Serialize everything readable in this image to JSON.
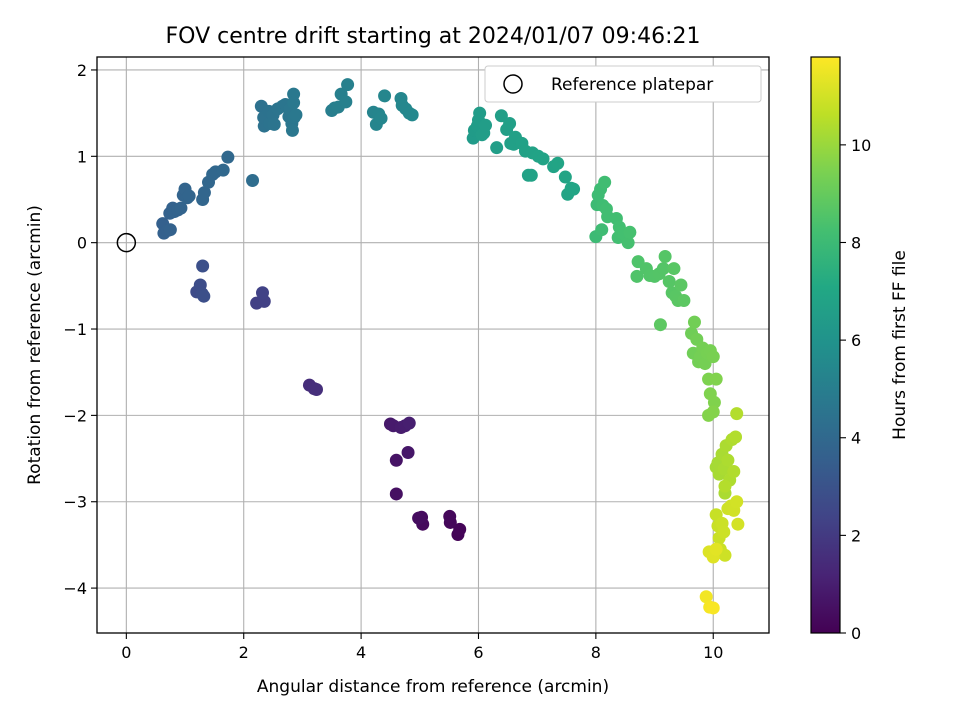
{
  "chart_data": {
    "type": "scatter",
    "title": "FOV centre drift starting at 2024/01/07 09:46:21",
    "xlabel": "Angular distance from reference (arcmin)",
    "ylabel": "Rotation from reference (arcmin)",
    "xlim": [
      -0.5,
      10.95
    ],
    "ylim": [
      -4.52,
      2.15
    ],
    "xticks": [
      0,
      2,
      4,
      6,
      8,
      10
    ],
    "yticks": [
      -4,
      -3,
      -2,
      -1,
      0,
      1,
      2
    ],
    "grid": true,
    "legend": {
      "location": "top-right",
      "entries": [
        "Reference platepar"
      ]
    },
    "reference_point": {
      "x": 0,
      "y": 0,
      "label": "Reference platepar"
    },
    "colorbar": {
      "label": "Hours from first FF file",
      "colormap": "viridis",
      "range": [
        0,
        11.8
      ],
      "ticks": [
        0,
        2,
        4,
        6,
        8,
        10
      ]
    },
    "colors": {
      "grid": "#b0b0b0",
      "axes": "#000000"
    },
    "points": [
      {
        "x": 5.65,
        "y": -3.38,
        "t": 0.1
      },
      {
        "x": 5.68,
        "y": -3.32,
        "t": 0.15
      },
      {
        "x": 5.52,
        "y": -3.24,
        "t": 0.2
      },
      {
        "x": 5.51,
        "y": -3.17,
        "t": 0.25
      },
      {
        "x": 5.05,
        "y": -3.26,
        "t": 0.3
      },
      {
        "x": 5.03,
        "y": -3.18,
        "t": 0.35
      },
      {
        "x": 4.98,
        "y": -3.19,
        "t": 0.4
      },
      {
        "x": 4.6,
        "y": -2.91,
        "t": 0.5
      },
      {
        "x": 4.6,
        "y": -2.52,
        "t": 0.6
      },
      {
        "x": 4.8,
        "y": -2.43,
        "t": 0.7
      },
      {
        "x": 4.5,
        "y": -2.1,
        "t": 0.8
      },
      {
        "x": 4.55,
        "y": -2.12,
        "t": 0.85
      },
      {
        "x": 4.68,
        "y": -2.14,
        "t": 0.9
      },
      {
        "x": 4.75,
        "y": -2.12,
        "t": 0.95
      },
      {
        "x": 4.82,
        "y": -2.09,
        "t": 1.0
      },
      {
        "x": 3.12,
        "y": -1.65,
        "t": 1.5
      },
      {
        "x": 3.2,
        "y": -1.69,
        "t": 1.55
      },
      {
        "x": 3.24,
        "y": -1.7,
        "t": 1.6
      },
      {
        "x": 2.22,
        "y": -0.7,
        "t": 2.2
      },
      {
        "x": 2.35,
        "y": -0.68,
        "t": 2.25
      },
      {
        "x": 2.32,
        "y": -0.58,
        "t": 2.3
      },
      {
        "x": 1.2,
        "y": -0.57,
        "t": 2.7
      },
      {
        "x": 1.26,
        "y": -0.49,
        "t": 2.75
      },
      {
        "x": 1.29,
        "y": -0.59,
        "t": 2.8
      },
      {
        "x": 1.32,
        "y": -0.62,
        "t": 2.85
      },
      {
        "x": 1.3,
        "y": -0.27,
        "t": 2.9
      },
      {
        "x": 0.62,
        "y": 0.22,
        "t": 3.6
      },
      {
        "x": 0.64,
        "y": 0.11,
        "t": 3.62
      },
      {
        "x": 0.7,
        "y": 0.14,
        "t": 3.64
      },
      {
        "x": 0.75,
        "y": 0.15,
        "t": 3.66
      },
      {
        "x": 0.74,
        "y": 0.34,
        "t": 3.68
      },
      {
        "x": 0.79,
        "y": 0.4,
        "t": 3.7
      },
      {
        "x": 0.82,
        "y": 0.36,
        "t": 3.72
      },
      {
        "x": 0.88,
        "y": 0.38,
        "t": 3.74
      },
      {
        "x": 0.93,
        "y": 0.4,
        "t": 3.76
      },
      {
        "x": 0.97,
        "y": 0.55,
        "t": 3.78
      },
      {
        "x": 1.0,
        "y": 0.62,
        "t": 3.8
      },
      {
        "x": 1.04,
        "y": 0.52,
        "t": 3.82
      },
      {
        "x": 1.07,
        "y": 0.54,
        "t": 3.84
      },
      {
        "x": 1.3,
        "y": 0.5,
        "t": 3.86
      },
      {
        "x": 1.33,
        "y": 0.58,
        "t": 3.88
      },
      {
        "x": 1.4,
        "y": 0.7,
        "t": 3.9
      },
      {
        "x": 1.47,
        "y": 0.79,
        "t": 3.92
      },
      {
        "x": 1.52,
        "y": 0.82,
        "t": 3.94
      },
      {
        "x": 1.65,
        "y": 0.84,
        "t": 3.96
      },
      {
        "x": 1.73,
        "y": 0.99,
        "t": 3.98
      },
      {
        "x": 2.15,
        "y": 0.72,
        "t": 4.2
      },
      {
        "x": 2.3,
        "y": 1.58,
        "t": 4.4
      },
      {
        "x": 2.35,
        "y": 1.35,
        "t": 4.42
      },
      {
        "x": 2.34,
        "y": 1.45,
        "t": 4.44
      },
      {
        "x": 2.43,
        "y": 1.52,
        "t": 4.46
      },
      {
        "x": 2.44,
        "y": 1.38,
        "t": 4.48
      },
      {
        "x": 2.5,
        "y": 1.48,
        "t": 4.5
      },
      {
        "x": 2.52,
        "y": 1.37,
        "t": 4.52
      },
      {
        "x": 2.58,
        "y": 1.55,
        "t": 4.54
      },
      {
        "x": 2.66,
        "y": 1.58,
        "t": 4.56
      },
      {
        "x": 2.71,
        "y": 1.6,
        "t": 4.58
      },
      {
        "x": 2.77,
        "y": 1.46,
        "t": 4.6
      },
      {
        "x": 2.79,
        "y": 1.55,
        "t": 4.62
      },
      {
        "x": 2.82,
        "y": 1.38,
        "t": 4.64
      },
      {
        "x": 2.83,
        "y": 1.3,
        "t": 4.66
      },
      {
        "x": 2.86,
        "y": 1.45,
        "t": 4.68
      },
      {
        "x": 2.89,
        "y": 1.48,
        "t": 4.7
      },
      {
        "x": 2.85,
        "y": 1.72,
        "t": 4.72
      },
      {
        "x": 2.85,
        "y": 1.62,
        "t": 4.74
      },
      {
        "x": 3.5,
        "y": 1.53,
        "t": 5.0
      },
      {
        "x": 3.55,
        "y": 1.56,
        "t": 5.02
      },
      {
        "x": 3.61,
        "y": 1.57,
        "t": 5.04
      },
      {
        "x": 3.66,
        "y": 1.72,
        "t": 5.06
      },
      {
        "x": 3.74,
        "y": 1.63,
        "t": 5.08
      },
      {
        "x": 3.77,
        "y": 1.83,
        "t": 5.1
      },
      {
        "x": 4.21,
        "y": 1.51,
        "t": 5.3
      },
      {
        "x": 4.26,
        "y": 1.37,
        "t": 5.32
      },
      {
        "x": 4.3,
        "y": 1.49,
        "t": 5.34
      },
      {
        "x": 4.34,
        "y": 1.44,
        "t": 5.36
      },
      {
        "x": 4.4,
        "y": 1.7,
        "t": 5.38
      },
      {
        "x": 4.68,
        "y": 1.67,
        "t": 5.4
      },
      {
        "x": 4.7,
        "y": 1.59,
        "t": 5.42
      },
      {
        "x": 4.76,
        "y": 1.55,
        "t": 5.44
      },
      {
        "x": 4.82,
        "y": 1.5,
        "t": 5.46
      },
      {
        "x": 4.87,
        "y": 1.48,
        "t": 5.48
      },
      {
        "x": 5.91,
        "y": 1.21,
        "t": 6.4
      },
      {
        "x": 5.93,
        "y": 1.3,
        "t": 6.42
      },
      {
        "x": 5.98,
        "y": 1.35,
        "t": 6.44
      },
      {
        "x": 6.0,
        "y": 1.42,
        "t": 6.46
      },
      {
        "x": 6.02,
        "y": 1.5,
        "t": 6.48
      },
      {
        "x": 6.06,
        "y": 1.25,
        "t": 6.5
      },
      {
        "x": 6.09,
        "y": 1.27,
        "t": 6.52
      },
      {
        "x": 6.12,
        "y": 1.36,
        "t": 6.54
      },
      {
        "x": 6.31,
        "y": 1.1,
        "t": 6.56
      },
      {
        "x": 6.39,
        "y": 1.47,
        "t": 6.58
      },
      {
        "x": 6.48,
        "y": 1.31,
        "t": 6.6
      },
      {
        "x": 6.53,
        "y": 1.38,
        "t": 6.62
      },
      {
        "x": 6.55,
        "y": 1.15,
        "t": 6.64
      },
      {
        "x": 6.6,
        "y": 1.14,
        "t": 6.66
      },
      {
        "x": 6.63,
        "y": 1.22,
        "t": 6.68
      },
      {
        "x": 6.74,
        "y": 1.15,
        "t": 6.7
      },
      {
        "x": 6.8,
        "y": 1.06,
        "t": 6.72
      },
      {
        "x": 6.85,
        "y": 0.78,
        "t": 6.74
      },
      {
        "x": 6.9,
        "y": 0.78,
        "t": 6.76
      },
      {
        "x": 6.92,
        "y": 1.04,
        "t": 6.78
      },
      {
        "x": 7.02,
        "y": 1.0,
        "t": 6.8
      },
      {
        "x": 7.1,
        "y": 0.97,
        "t": 6.82
      },
      {
        "x": 7.28,
        "y": 0.88,
        "t": 6.84
      },
      {
        "x": 7.35,
        "y": 0.92,
        "t": 6.86
      },
      {
        "x": 7.48,
        "y": 0.76,
        "t": 6.88
      },
      {
        "x": 7.52,
        "y": 0.56,
        "t": 6.9
      },
      {
        "x": 7.58,
        "y": 0.63,
        "t": 6.92
      },
      {
        "x": 7.62,
        "y": 0.62,
        "t": 6.94
      },
      {
        "x": 8.0,
        "y": 0.07,
        "t": 8.0
      },
      {
        "x": 8.02,
        "y": 0.44,
        "t": 8.02
      },
      {
        "x": 8.04,
        "y": 0.55,
        "t": 8.04
      },
      {
        "x": 8.08,
        "y": 0.62,
        "t": 8.06
      },
      {
        "x": 8.1,
        "y": 0.15,
        "t": 8.08
      },
      {
        "x": 8.12,
        "y": 0.43,
        "t": 8.1
      },
      {
        "x": 8.15,
        "y": 0.7,
        "t": 8.12
      },
      {
        "x": 8.18,
        "y": 0.39,
        "t": 8.14
      },
      {
        "x": 8.2,
        "y": 0.3,
        "t": 8.16
      },
      {
        "x": 8.35,
        "y": 0.28,
        "t": 8.18
      },
      {
        "x": 8.38,
        "y": 0.06,
        "t": 8.2
      },
      {
        "x": 8.4,
        "y": 0.18,
        "t": 8.22
      },
      {
        "x": 8.43,
        "y": 0.12,
        "t": 8.24
      },
      {
        "x": 8.48,
        "y": 0.1,
        "t": 8.26
      },
      {
        "x": 8.55,
        "y": 0.0,
        "t": 8.28
      },
      {
        "x": 8.58,
        "y": 0.12,
        "t": 8.3
      },
      {
        "x": 8.72,
        "y": -0.22,
        "t": 8.5
      },
      {
        "x": 8.7,
        "y": -0.39,
        "t": 8.52
      },
      {
        "x": 8.86,
        "y": -0.3,
        "t": 8.54
      },
      {
        "x": 8.92,
        "y": -0.38,
        "t": 8.56
      },
      {
        "x": 9.0,
        "y": -0.39,
        "t": 8.58
      },
      {
        "x": 9.08,
        "y": -0.36,
        "t": 8.6
      },
      {
        "x": 9.15,
        "y": -0.3,
        "t": 8.62
      },
      {
        "x": 9.18,
        "y": -0.16,
        "t": 8.64
      },
      {
        "x": 9.25,
        "y": -0.45,
        "t": 8.66
      },
      {
        "x": 9.3,
        "y": -0.58,
        "t": 8.68
      },
      {
        "x": 9.33,
        "y": -0.3,
        "t": 8.7
      },
      {
        "x": 9.36,
        "y": -0.62,
        "t": 8.72
      },
      {
        "x": 9.4,
        "y": -0.67,
        "t": 8.74
      },
      {
        "x": 9.45,
        "y": -0.49,
        "t": 8.76
      },
      {
        "x": 9.5,
        "y": -0.67,
        "t": 8.78
      },
      {
        "x": 9.1,
        "y": -0.95,
        "t": 8.8
      },
      {
        "x": 9.63,
        "y": -1.05,
        "t": 9.2
      },
      {
        "x": 9.66,
        "y": -1.28,
        "t": 9.22
      },
      {
        "x": 9.68,
        "y": -0.92,
        "t": 9.24
      },
      {
        "x": 9.72,
        "y": -1.12,
        "t": 9.26
      },
      {
        "x": 9.75,
        "y": -1.38,
        "t": 9.28
      },
      {
        "x": 9.78,
        "y": -1.32,
        "t": 9.3
      },
      {
        "x": 9.82,
        "y": -1.22,
        "t": 9.32
      },
      {
        "x": 9.86,
        "y": -1.4,
        "t": 9.34
      },
      {
        "x": 9.9,
        "y": -1.28,
        "t": 9.36
      },
      {
        "x": 9.95,
        "y": -1.25,
        "t": 9.38
      },
      {
        "x": 10.0,
        "y": -1.32,
        "t": 9.4
      },
      {
        "x": 9.92,
        "y": -1.58,
        "t": 9.5
      },
      {
        "x": 9.95,
        "y": -1.75,
        "t": 9.52
      },
      {
        "x": 10.02,
        "y": -1.85,
        "t": 9.54
      },
      {
        "x": 10.05,
        "y": -1.58,
        "t": 9.56
      },
      {
        "x": 9.92,
        "y": -2.0,
        "t": 9.6
      },
      {
        "x": 10.0,
        "y": -1.96,
        "t": 9.62
      },
      {
        "x": 10.05,
        "y": -2.6,
        "t": 10.2
      },
      {
        "x": 10.08,
        "y": -2.55,
        "t": 10.22
      },
      {
        "x": 10.1,
        "y": -2.68,
        "t": 10.24
      },
      {
        "x": 10.15,
        "y": -2.45,
        "t": 10.26
      },
      {
        "x": 10.18,
        "y": -2.62,
        "t": 10.28
      },
      {
        "x": 10.2,
        "y": -2.9,
        "t": 10.3
      },
      {
        "x": 10.22,
        "y": -2.35,
        "t": 10.32
      },
      {
        "x": 10.25,
        "y": -2.52,
        "t": 10.34
      },
      {
        "x": 10.28,
        "y": -2.75,
        "t": 10.36
      },
      {
        "x": 10.32,
        "y": -2.28,
        "t": 10.38
      },
      {
        "x": 10.35,
        "y": -2.65,
        "t": 10.4
      },
      {
        "x": 10.38,
        "y": -2.25,
        "t": 10.42
      },
      {
        "x": 10.4,
        "y": -1.98,
        "t": 10.44
      },
      {
        "x": 10.2,
        "y": -2.82,
        "t": 10.46
      },
      {
        "x": 10.05,
        "y": -3.15,
        "t": 10.8
      },
      {
        "x": 10.08,
        "y": -3.28,
        "t": 10.82
      },
      {
        "x": 10.1,
        "y": -3.42,
        "t": 10.84
      },
      {
        "x": 10.12,
        "y": -3.55,
        "t": 10.86
      },
      {
        "x": 10.15,
        "y": -3.25,
        "t": 10.88
      },
      {
        "x": 10.18,
        "y": -3.35,
        "t": 10.9
      },
      {
        "x": 10.2,
        "y": -3.62,
        "t": 10.92
      },
      {
        "x": 10.25,
        "y": -3.08,
        "t": 10.94
      },
      {
        "x": 10.3,
        "y": -3.05,
        "t": 10.96
      },
      {
        "x": 10.35,
        "y": -3.1,
        "t": 10.98
      },
      {
        "x": 10.4,
        "y": -3.0,
        "t": 11.0
      },
      {
        "x": 10.42,
        "y": -3.26,
        "t": 11.02
      },
      {
        "x": 9.93,
        "y": -3.58,
        "t": 11.2
      },
      {
        "x": 10.0,
        "y": -3.64,
        "t": 11.25
      },
      {
        "x": 10.05,
        "y": -3.55,
        "t": 11.3
      },
      {
        "x": 9.88,
        "y": -4.1,
        "t": 11.6
      },
      {
        "x": 9.94,
        "y": -4.22,
        "t": 11.65
      },
      {
        "x": 10.0,
        "y": -4.23,
        "t": 11.7
      }
    ]
  }
}
